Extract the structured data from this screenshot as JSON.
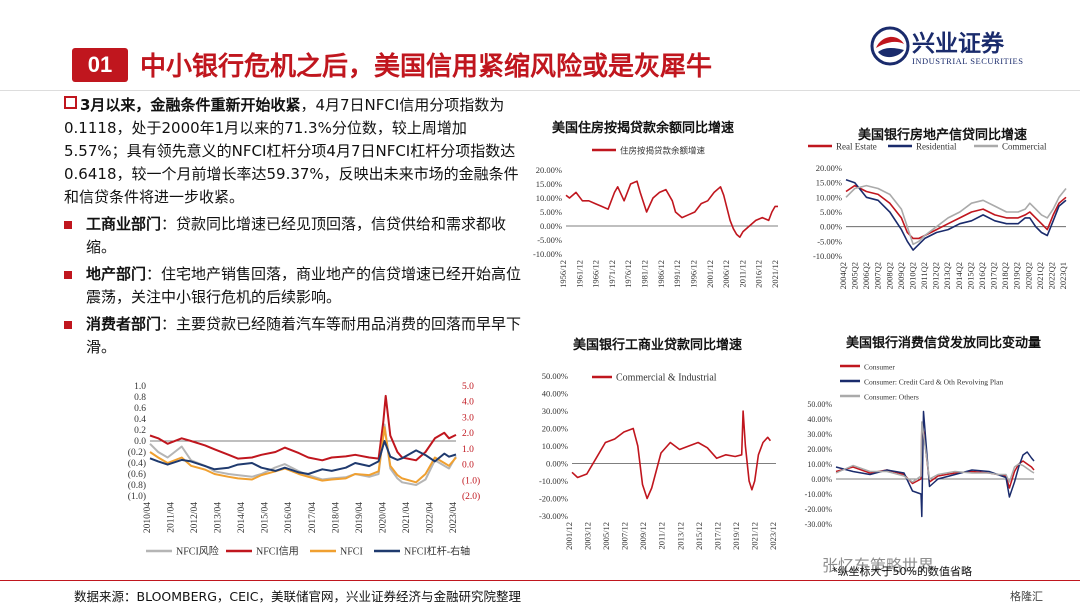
{
  "header": {
    "badge": "01",
    "title": "中小银行危机之后，美国信用紧缩风险或是灰犀牛",
    "logo_cn": "兴业证券",
    "logo_en": "INDUSTRIAL SECURITIES"
  },
  "text": {
    "intro_lead": "3月以来，金融条件重新开始收紧",
    "intro_rest": "，4月7日NFCI信用分项指数为0.1118，处于2000年1月以来的71.3%分位数，较上周增加5.57%；具有领先意义的NFCI杠杆分项4月7日NFCI杠杆分项指数达0.6418，较一个月前增长率达59.37%，反映出未来市场的金融条件和信贷条件将进一步收紧。",
    "bullets": [
      {
        "label": "工商业部门",
        "text": "：贷款同比增速已经见顶回落，信贷供给和需求都收缩。"
      },
      {
        "label": "地产部门",
        "text": "：住宅地产销售回落，商业地产的信贷增速已经开始高位震荡，关注中小银行危机的后续影响。"
      },
      {
        "label": "消费者部门",
        "text": "：主要贷款已经随着汽车等耐用品消费的回落而早早下滑。"
      }
    ]
  },
  "colors": {
    "brand_red": "#c0161e",
    "navy": "#1a2b6c",
    "nfci_risk": "#b5b5b5",
    "nfci_credit": "#c0161e",
    "nfci": "#f0a030",
    "nfci_leverage": "#1f3a6e",
    "consumer_other": "#aaaaaa"
  },
  "footer": {
    "source": "数据来源：BLOOMBERG，CEIC，美联储官网，兴业证券经济与金融研究院整理",
    "watermark": "张忆东策略世界",
    "note": "*纵坐标大于50%的数值省略",
    "corner": "格隆汇"
  },
  "chart_data": [
    {
      "id": "nfci",
      "type": "line",
      "title": "",
      "xlabels": [
        "2010/04",
        "2011/04",
        "2012/04",
        "2013/04",
        "2014/04",
        "2015/04",
        "2016/04",
        "2017/04",
        "2018/04",
        "2019/04",
        "2020/04",
        "2021/04",
        "2022/04",
        "2023/04"
      ],
      "x_start": 2010.25,
      "x_end": 2023.3,
      "ylim": [
        -1.0,
        1.0
      ],
      "yticks_left": [
        "1.0",
        "0.8",
        "0.6",
        "0.4",
        "0.2",
        "0.0",
        "(0.2)",
        "(0.4)",
        "(0.6)",
        "(0.8)",
        "(1.0)"
      ],
      "y2lim": [
        -2.0,
        5.0
      ],
      "yticks_right": [
        "5.0",
        "4.0",
        "3.0",
        "2.0",
        "1.0",
        "0.0",
        "(1.0)",
        "(2.0)"
      ],
      "legend": [
        "NFCI风险",
        "NFCI信用",
        "NFCI",
        "NFCI杠杆-右轴"
      ],
      "series": [
        {
          "name": "NFCI风险",
          "axis": "left",
          "color": "#b5b5b5",
          "x": [
            2010.25,
            2010.6,
            2011.0,
            2011.6,
            2012.0,
            2012.6,
            2013.0,
            2013.6,
            2014.0,
            2014.6,
            2015.0,
            2015.6,
            2016.0,
            2016.6,
            2017.0,
            2017.6,
            2018.0,
            2018.6,
            2019.0,
            2019.6,
            2020.0,
            2020.25,
            2020.5,
            2020.8,
            2021.0,
            2021.6,
            2022.0,
            2022.4,
            2022.8,
            2023.0,
            2023.3
          ],
          "y": [
            -0.05,
            -0.2,
            -0.3,
            -0.1,
            -0.35,
            -0.45,
            -0.55,
            -0.6,
            -0.62,
            -0.65,
            -0.6,
            -0.48,
            -0.42,
            -0.55,
            -0.62,
            -0.7,
            -0.68,
            -0.66,
            -0.6,
            -0.65,
            -0.6,
            0.3,
            -0.5,
            -0.68,
            -0.75,
            -0.8,
            -0.7,
            -0.35,
            -0.45,
            -0.5,
            -0.28
          ]
        },
        {
          "name": "NFCI信用",
          "axis": "left",
          "color": "#c0161e",
          "x": [
            2010.25,
            2010.6,
            2011.0,
            2011.6,
            2012.0,
            2012.6,
            2013.0,
            2013.6,
            2014.0,
            2014.6,
            2015.0,
            2015.6,
            2016.0,
            2016.6,
            2017.0,
            2017.6,
            2018.0,
            2018.6,
            2019.0,
            2019.6,
            2020.0,
            2020.2,
            2020.3,
            2020.5,
            2020.8,
            2021.0,
            2021.6,
            2022.0,
            2022.4,
            2022.8,
            2023.0,
            2023.3
          ],
          "y": [
            0.1,
            0.05,
            -0.05,
            0.05,
            0.0,
            -0.08,
            -0.15,
            -0.25,
            -0.32,
            -0.3,
            -0.25,
            -0.2,
            -0.12,
            -0.22,
            -0.3,
            -0.35,
            -0.3,
            -0.28,
            -0.25,
            -0.3,
            -0.32,
            0.35,
            0.82,
            0.1,
            -0.2,
            -0.3,
            -0.35,
            -0.2,
            0.05,
            0.15,
            0.05,
            0.11
          ]
        },
        {
          "name": "NFCI",
          "axis": "left",
          "color": "#f0a030",
          "x": [
            2010.25,
            2010.6,
            2011.0,
            2011.6,
            2012.0,
            2012.6,
            2013.0,
            2013.6,
            2014.0,
            2014.6,
            2015.0,
            2015.6,
            2016.0,
            2016.6,
            2017.0,
            2017.6,
            2018.0,
            2018.6,
            2019.0,
            2019.6,
            2020.0,
            2020.25,
            2020.5,
            2020.8,
            2021.0,
            2021.6,
            2022.0,
            2022.4,
            2022.8,
            2023.0,
            2023.3
          ],
          "y": [
            -0.2,
            -0.3,
            -0.4,
            -0.3,
            -0.45,
            -0.52,
            -0.6,
            -0.65,
            -0.68,
            -0.7,
            -0.62,
            -0.55,
            -0.5,
            -0.6,
            -0.65,
            -0.72,
            -0.7,
            -0.68,
            -0.6,
            -0.62,
            -0.55,
            0.25,
            -0.45,
            -0.62,
            -0.68,
            -0.75,
            -0.6,
            -0.3,
            -0.4,
            -0.45,
            -0.3
          ]
        },
        {
          "name": "NFCI杠杆-右轴",
          "axis": "right",
          "color": "#1f3a6e",
          "x": [
            2010.25,
            2010.6,
            2011.0,
            2011.6,
            2012.0,
            2012.6,
            2013.0,
            2013.6,
            2014.0,
            2014.6,
            2015.0,
            2015.6,
            2016.0,
            2016.6,
            2017.0,
            2017.6,
            2018.0,
            2018.6,
            2019.0,
            2019.6,
            2020.0,
            2020.25,
            2020.5,
            2020.8,
            2021.0,
            2021.6,
            2022.0,
            2022.4,
            2022.8,
            2023.0,
            2023.3
          ],
          "y": [
            0.4,
            0.2,
            0.0,
            0.3,
            0.2,
            -0.1,
            -0.3,
            -0.2,
            0.0,
            0.1,
            -0.2,
            -0.4,
            -0.2,
            -0.5,
            -0.6,
            -0.3,
            -0.4,
            -0.2,
            0.1,
            -0.1,
            0.2,
            1.5,
            0.5,
            0.3,
            0.4,
            0.9,
            0.6,
            0.2,
            0.7,
            0.5,
            0.64
          ]
        }
      ]
    },
    {
      "id": "mortgage",
      "type": "line",
      "title": "美国住房按揭贷款余额同比增速",
      "xlabels": [
        "1956/12",
        "1961/12",
        "1966/12",
        "1971/12",
        "1976/12",
        "1981/12",
        "1986/12",
        "1991/12",
        "1996/12",
        "2001/12",
        "2006/12",
        "2011/12",
        "2016/12",
        "2021/12"
      ],
      "x_start": 1956.9,
      "x_end": 2022.9,
      "ylim": [
        -10,
        20
      ],
      "yticks": [
        "20.00%",
        "15.00%",
        "10.00%",
        "5.00%",
        "0.00%",
        "-5.00%",
        "-10.00%"
      ],
      "legend": [
        "住房按揭贷款余额增速"
      ],
      "series": [
        {
          "name": "住房按揭贷款余额增速",
          "color": "#c0161e",
          "x": [
            1956.9,
            1958,
            1960,
            1962,
            1964,
            1966,
            1968,
            1970,
            1972,
            1973,
            1975,
            1977,
            1979,
            1980,
            1982,
            1984,
            1986,
            1988,
            1990,
            1991,
            1993,
            1995,
            1997,
            1999,
            2001,
            2003,
            2005,
            2006,
            2008,
            2009,
            2010,
            2011,
            2012,
            2014,
            2016,
            2018,
            2020,
            2021,
            2022,
            2022.9
          ],
          "y": [
            11,
            10,
            12,
            9,
            9,
            8,
            7,
            6,
            12,
            14,
            9,
            15,
            16,
            12,
            5,
            10,
            12,
            13,
            9,
            5,
            3,
            4,
            5,
            8,
            9,
            12,
            14,
            11,
            2,
            -1,
            -3,
            -4,
            -2,
            0,
            2,
            3,
            2,
            5,
            7,
            7
          ]
        }
      ]
    },
    {
      "id": "cre",
      "type": "line",
      "title": "美国银行房地产信贷同比增速",
      "xlabels": [
        "2004Q2",
        "2005Q2",
        "2006Q2",
        "2007Q2",
        "2008Q2",
        "2009Q2",
        "2010Q2",
        "2011Q2",
        "2012Q2",
        "2013Q2",
        "2014Q2",
        "2015Q2",
        "2016Q2",
        "2017Q2",
        "2018Q2",
        "2019Q2",
        "2020Q2",
        "2021Q2",
        "2022Q2",
        "2023Q1"
      ],
      "x_start": 2004.25,
      "x_end": 2023.1,
      "ylim": [
        -10,
        20
      ],
      "yticks": [
        "20.00%",
        "15.00%",
        "10.00%",
        "5.00%",
        "0.00%",
        "-5.00%",
        "-10.00%"
      ],
      "legend": [
        "Real Estate",
        "Residential",
        "Commercial"
      ],
      "series": [
        {
          "name": "Real Estate",
          "color": "#c0161e",
          "x": [
            2004.25,
            2005,
            2006,
            2007,
            2008,
            2009,
            2009.5,
            2010,
            2010.5,
            2011,
            2012,
            2013,
            2014,
            2015,
            2016,
            2017,
            2018,
            2019,
            2019.6,
            2020,
            2020.5,
            2021,
            2021.5,
            2022,
            2022.5,
            2023.1
          ],
          "y": [
            12,
            14,
            12,
            11,
            8,
            3,
            -2,
            -4,
            -4,
            -3,
            -1,
            1,
            3,
            5,
            6,
            4,
            3,
            3,
            4,
            5,
            3,
            1,
            -1,
            4,
            8,
            10
          ]
        },
        {
          "name": "Residential",
          "color": "#1a2b6c",
          "x": [
            2004.25,
            2005,
            2006,
            2007,
            2008,
            2009,
            2009.5,
            2010,
            2010.5,
            2011,
            2012,
            2013,
            2014,
            2015,
            2016,
            2017,
            2018,
            2019,
            2019.6,
            2020,
            2020.5,
            2021,
            2021.5,
            2022,
            2022.5,
            2023.1
          ],
          "y": [
            16,
            15,
            10,
            9,
            5,
            -1,
            -5,
            -8,
            -6,
            -4,
            -2,
            -1,
            1,
            2,
            4,
            2,
            1,
            1,
            3,
            3,
            0,
            -2,
            -3,
            2,
            7,
            9
          ]
        },
        {
          "name": "Commercial",
          "color": "#aaaaaa",
          "x": [
            2004.25,
            2005,
            2006,
            2007,
            2008,
            2009,
            2009.5,
            2010,
            2010.5,
            2011,
            2012,
            2013,
            2014,
            2015,
            2016,
            2017,
            2018,
            2019,
            2019.6,
            2020,
            2020.5,
            2021,
            2021.5,
            2022,
            2022.5,
            2023.1
          ],
          "y": [
            10,
            13,
            14,
            13,
            11,
            6,
            0,
            -6,
            -5,
            -3,
            0,
            3,
            5,
            8,
            9,
            7,
            5,
            5,
            6,
            8,
            6,
            4,
            3,
            6,
            10,
            13
          ]
        }
      ]
    },
    {
      "id": "ci",
      "type": "line",
      "title": "美国银行工商业贷款同比增速",
      "xlabels": [
        "2001/12",
        "2003/12",
        "2005/12",
        "2007/12",
        "2009/12",
        "2011/12",
        "2013/12",
        "2015/12",
        "2017/12",
        "2019/12",
        "2021/12",
        "2023/12"
      ],
      "x_start": 2001.9,
      "x_end": 2023.9,
      "ylim": [
        -30,
        50
      ],
      "yticks": [
        "50.00%",
        "40.00%",
        "30.00%",
        "20.00%",
        "10.00%",
        "0.00%",
        "-10.00%",
        "-20.00%",
        "-30.00%"
      ],
      "legend": [
        "Commercial & Industrial"
      ],
      "series": [
        {
          "name": "Commercial & Industrial",
          "color": "#c0161e",
          "x": [
            2001.9,
            2002.5,
            2003.5,
            2004.5,
            2005.5,
            2006.5,
            2007.5,
            2008.5,
            2009.0,
            2009.5,
            2010.0,
            2010.5,
            2011.5,
            2012.5,
            2013.5,
            2014.5,
            2015.5,
            2016.5,
            2017.5,
            2018.5,
            2019.5,
            2020.2,
            2020.35,
            2020.6,
            2021.0,
            2021.3,
            2021.6,
            2022.0,
            2022.5,
            2023.0,
            2023.3
          ],
          "y": [
            -5,
            -8,
            -6,
            3,
            12,
            14,
            18,
            20,
            10,
            -12,
            -20,
            -14,
            6,
            12,
            8,
            10,
            12,
            9,
            3,
            5,
            4,
            5,
            30,
            10,
            -10,
            -15,
            -10,
            5,
            12,
            15,
            13
          ]
        }
      ]
    },
    {
      "id": "consumer",
      "type": "line",
      "title": "美国银行消费信贷发放同比变动量",
      "xlabels": [],
      "x_start": 2000.0,
      "x_end": 2023.3,
      "ylim": [
        -30,
        50
      ],
      "yticks": [
        "50.00%",
        "40.00%",
        "30.00%",
        "20.00%",
        "10.00%",
        "0.00%",
        "-10.00%",
        "-20.00%",
        "-30.00%"
      ],
      "legend": [
        "Consumer",
        "Consumer: Credit Card & Oth Revolving Plan",
        "Consumer: Others"
      ],
      "series": [
        {
          "name": "Consumer",
          "color": "#c0161e",
          "x": [
            2000,
            2002,
            2004,
            2006,
            2008,
            2009,
            2010,
            2010.1,
            2010.3,
            2011,
            2012,
            2014,
            2016,
            2018,
            2019,
            2020,
            2020.4,
            2021,
            2021.5,
            2022,
            2022.5,
            2023,
            2023.3
          ],
          "y": [
            5,
            8,
            4,
            6,
            3,
            -3,
            0,
            35,
            32,
            -2,
            2,
            4,
            5,
            4,
            3,
            2,
            -6,
            5,
            10,
            12,
            10,
            8,
            6
          ]
        },
        {
          "name": "Consumer: Credit Card & Oth Revolving Plan",
          "color": "#1a2b6c",
          "x": [
            2000,
            2002,
            2004,
            2006,
            2008,
            2009,
            2010,
            2010.1,
            2010.3,
            2011,
            2012,
            2014,
            2016,
            2018,
            2019,
            2020,
            2020.4,
            2021,
            2021.5,
            2022,
            2022.5,
            2023,
            2023.3
          ],
          "y": [
            8,
            5,
            3,
            6,
            4,
            -8,
            -10,
            -25,
            45,
            -5,
            0,
            3,
            6,
            5,
            3,
            1,
            -12,
            -2,
            8,
            16,
            18,
            14,
            12
          ]
        },
        {
          "name": "Consumer: Others",
          "color": "#aaaaaa",
          "x": [
            2000,
            2002,
            2004,
            2006,
            2008,
            2009,
            2010,
            2010.1,
            2010.3,
            2011,
            2012,
            2014,
            2016,
            2018,
            2019,
            2020,
            2020.4,
            2021,
            2021.5,
            2022,
            2022.5,
            2023,
            2023.3
          ],
          "y": [
            4,
            9,
            5,
            5,
            2,
            -2,
            2,
            38,
            30,
            0,
            3,
            5,
            4,
            4,
            3,
            3,
            -2,
            8,
            10,
            9,
            7,
            5,
            4
          ]
        }
      ]
    }
  ]
}
